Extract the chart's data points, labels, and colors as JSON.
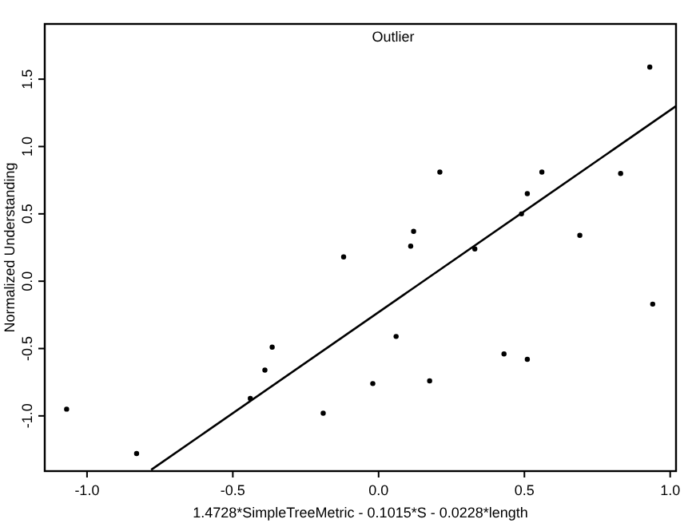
{
  "chart_data": {
    "type": "scatter",
    "title": "Outlier",
    "xlabel": "1.4728*SimpleTreeMetric - 0.1015*S - 0.0228*length",
    "ylabel": "Normalized Understanding",
    "xlim": [
      -1.145,
      1.02
    ],
    "ylim": [
      -1.41,
      1.91
    ],
    "xticks": [
      {
        "value": -1,
        "label": "-1.0"
      },
      {
        "value": -0.5,
        "label": "-0.5"
      },
      {
        "value": 0,
        "label": "0.0"
      },
      {
        "value": 0.5,
        "label": "0.5"
      },
      {
        "value": 1,
        "label": "1.0"
      }
    ],
    "yticks": [
      {
        "value": -1,
        "label": "-1.0"
      },
      {
        "value": -0.5,
        "label": "-0.5"
      },
      {
        "value": 0,
        "label": "0.0"
      },
      {
        "value": 0.5,
        "label": "0.5"
      },
      {
        "value": 1,
        "label": "1.0"
      },
      {
        "value": 1.5,
        "label": "1.5"
      }
    ],
    "grid": false,
    "series": [
      {
        "marker": "circle",
        "color": "#000000",
        "x": [
          -1.07,
          -0.83,
          -0.44,
          -0.39,
          -0.365,
          -0.19,
          -0.12,
          -0.02,
          0.06,
          0.11,
          0.12,
          0.175,
          0.21,
          0.33,
          0.43,
          0.49,
          0.51,
          0.51,
          0.56,
          0.69,
          0.83,
          0.93,
          0.94
        ],
        "values": [
          -0.95,
          -1.28,
          -0.87,
          -0.66,
          -0.49,
          -0.98,
          0.18,
          -0.76,
          -0.41,
          0.26,
          0.37,
          -0.74,
          0.81,
          0.24,
          -0.54,
          0.5,
          0.65,
          -0.58,
          0.81,
          0.34,
          0.8,
          1.59,
          -0.17
        ]
      },
      {
        "type": "line",
        "color": "#000000",
        "x": [
          -0.78,
          1.02
        ],
        "values": [
          -1.4,
          1.3
        ]
      }
    ]
  }
}
